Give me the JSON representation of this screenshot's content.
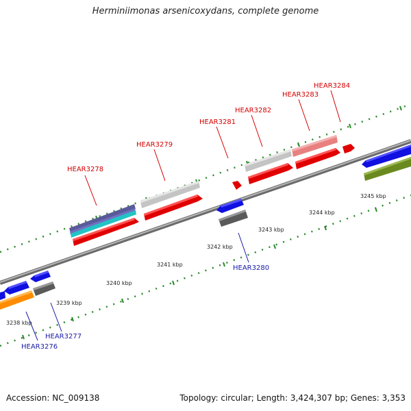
{
  "title": "Herminiimonas arsenicoxydans, complete genome",
  "footer": {
    "accession_text": "Accession: NC_009138",
    "summary_text": "Topology: circular; Length: 3,424,307 bp; Genes: 3,353"
  },
  "colors": {
    "forward_label": "#d40000",
    "reverse_label": "#1a1aa6",
    "backbone": "#888888",
    "tick_dot": "#2a8a2a"
  },
  "tick_labels": [
    "3238 kbp",
    "3239 kbp",
    "3240 kbp",
    "3241 kbp",
    "3242 kbp",
    "3243 kbp",
    "3244 kbp",
    "3245 kbp"
  ],
  "gene_labels": [
    {
      "text": "HEAR3276",
      "strand": "reverse"
    },
    {
      "text": "HEAR3277",
      "strand": "reverse"
    },
    {
      "text": "HEAR3278",
      "strand": "forward"
    },
    {
      "text": "HEAR3279",
      "strand": "forward"
    },
    {
      "text": "HEAR3280",
      "strand": "reverse"
    },
    {
      "text": "HEAR3281",
      "strand": "forward"
    },
    {
      "text": "HEAR3282",
      "strand": "forward"
    },
    {
      "text": "HEAR3283",
      "strand": "forward"
    },
    {
      "text": "HEAR3284",
      "strand": "forward"
    }
  ]
}
